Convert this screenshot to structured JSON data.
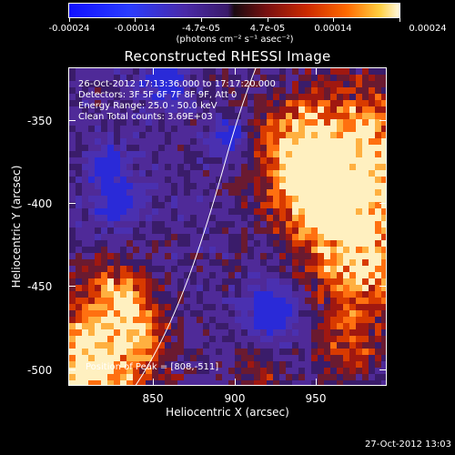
{
  "colorbar": {
    "tick_labels": [
      "-0.00024",
      "-0.00014",
      "-4.7e-05",
      "4.7e-05",
      "0.00014",
      "0.00024"
    ],
    "units": "(photons cm⁻² s⁻¹ asec⁻²)"
  },
  "plot": {
    "title": "Reconstructed RHESSI Image",
    "xlabel": "Heliocentric X (arcsec)",
    "ylabel": "Heliocentric Y (arcsec)",
    "x_ticks": [
      "850",
      "900",
      "950"
    ],
    "y_ticks": [
      "-350",
      "-400",
      "-450",
      "-500"
    ]
  },
  "annotations": {
    "time_range": "26-Oct-2012 17:13:36.000 to 17:17:20.000",
    "detectors": "Detectors: 3F 5F 6F 7F 8F 9F, Att 0",
    "energy": "Energy Range: 25.0 - 50.0 keV",
    "clean": "Clean    Total counts: 3.69E+03",
    "peak": "Position of Peak = [808,-511]"
  },
  "footer": {
    "timestamp": "27-Oct-2012 13:03"
  },
  "colors": {
    "background": "#000000",
    "limb_line": "#ffffff",
    "cmap_low": "#1010ff",
    "cmap_mid": "#4a2aa8",
    "cmap_high": "#fff8e0"
  }
}
